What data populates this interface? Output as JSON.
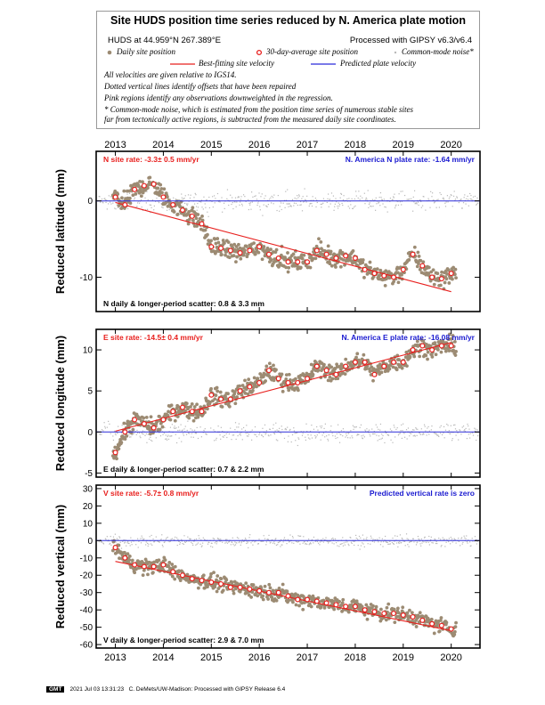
{
  "header": {
    "title": "Site HUDS position time series reduced by N. America plate motion",
    "site_location": "HUDS at 44.959°N 267.389°E",
    "processing": "Processed with GIPSY v6.3/v6.4",
    "legend": {
      "daily": "Daily site position",
      "avg": "30-day-average site position",
      "cmn": "Common-mode noise*",
      "fit": "Best-fitting site velocity",
      "plate": "Predicted plate velocity"
    },
    "notes": [
      "All velocities are given relative to IGS14.",
      "Dotted vertical lines identify offsets that have been repaired",
      "Pink regions identify any observations downweighted in the regression.",
      "* Common-mode noise, which is estimated from the position time series of numerous stable sites",
      "far from tectonically active regions, is subtracted from the measured daily site coordinates."
    ]
  },
  "colors": {
    "daily": "#9c8b73",
    "avg_ring": "#e8201e",
    "fit": "#e8201e",
    "plate": "#2b2bd9",
    "cmn": "#b8b8b8",
    "site_label": "#e8201e",
    "plate_label": "#1a1ad0"
  },
  "footer": {
    "logo": "GMT",
    "timestamp": "2021 Jul 03 13:31:23",
    "credit": "C. DeMets/UW-Madison: Processed with GIPSY Release 6.4"
  },
  "chart_data": [
    {
      "type": "scatter",
      "ylabel": "Reduced latitude (mm)",
      "xlim": [
        2012.6,
        2020.6
      ],
      "ylim": [
        -14.5,
        6.5
      ],
      "yticks": [
        -10,
        0
      ],
      "xticks": [
        2013,
        2014,
        2015,
        2016,
        2017,
        2018,
        2019,
        2020
      ],
      "site_rate_label": "N site rate:  -3.3± 0.5 mm/yr",
      "plate_rate_label": "N. America N plate rate:  -1.64 mm/yr",
      "scatter_label": "N daily & longer-period scatter:   0.8 &   3.3 mm",
      "fit_line": {
        "x": [
          2013.0,
          2020.0
        ],
        "y": [
          -0.2,
          -11.9
        ]
      },
      "plate_line": 0,
      "cmn_spread": 1.2,
      "daily_spread": 0.8,
      "avg_x": [
        2013.0,
        2013.2,
        2013.4,
        2013.6,
        2013.8,
        2014.0,
        2014.2,
        2014.4,
        2014.6,
        2014.8,
        2015.0,
        2015.2,
        2015.4,
        2015.6,
        2015.8,
        2016.0,
        2016.2,
        2016.4,
        2016.6,
        2016.8,
        2017.0,
        2017.2,
        2017.4,
        2017.6,
        2017.8,
        2018.0,
        2018.2,
        2018.4,
        2018.6,
        2018.8,
        2019.0,
        2019.2,
        2019.4,
        2019.6,
        2019.8,
        2020.0
      ],
      "avg_y": [
        0.5,
        -0.5,
        1.5,
        2.0,
        2.2,
        0.5,
        -0.5,
        -1.2,
        -2.0,
        -3.0,
        -6.0,
        -6.2,
        -6.5,
        -6.8,
        -6.5,
        -6.0,
        -7.0,
        -7.5,
        -8.0,
        -8.0,
        -8.0,
        -6.5,
        -7.0,
        -7.5,
        -7.2,
        -7.5,
        -9.0,
        -9.5,
        -9.8,
        -10.0,
        -9.0,
        -7.0,
        -8.5,
        -10.0,
        -10.2,
        -9.5
      ]
    },
    {
      "type": "scatter",
      "ylabel": "Reduced longitude (mm)",
      "xlim": [
        2012.6,
        2020.6
      ],
      "ylim": [
        -5.5,
        12.5
      ],
      "yticks": [
        -5,
        0,
        5,
        10
      ],
      "xticks": [
        2013,
        2014,
        2015,
        2016,
        2017,
        2018,
        2019,
        2020
      ],
      "site_rate_label": "E site rate:  -14.5± 0.4 mm/yr",
      "plate_rate_label": "N. America E plate rate:  -16.08 mm/yr",
      "scatter_label": "E daily & longer-period scatter:   0.7 &   2.2 mm",
      "fit_line": {
        "x": [
          2013.0,
          2020.0
        ],
        "y": [
          0.1,
          10.9
        ]
      },
      "plate_line": 0,
      "cmn_spread": 1.0,
      "daily_spread": 0.7,
      "avg_x": [
        2013.0,
        2013.2,
        2013.4,
        2013.6,
        2013.8,
        2014.0,
        2014.2,
        2014.4,
        2014.6,
        2014.8,
        2015.0,
        2015.2,
        2015.4,
        2015.6,
        2015.8,
        2016.0,
        2016.2,
        2016.4,
        2016.6,
        2016.8,
        2017.0,
        2017.2,
        2017.4,
        2017.6,
        2017.8,
        2018.0,
        2018.2,
        2018.4,
        2018.6,
        2018.8,
        2019.0,
        2019.2,
        2019.4,
        2019.6,
        2019.8,
        2020.0
      ],
      "avg_y": [
        -2.5,
        0.0,
        1.5,
        1.0,
        0.5,
        1.5,
        2.5,
        3.0,
        2.5,
        2.5,
        4.5,
        4.0,
        4.0,
        5.0,
        5.5,
        6.0,
        7.5,
        6.5,
        6.0,
        6.0,
        6.5,
        8.0,
        7.5,
        7.0,
        8.0,
        8.5,
        8.5,
        7.0,
        8.0,
        8.5,
        8.5,
        10.0,
        10.5,
        10.0,
        10.5,
        10.5
      ]
    },
    {
      "type": "scatter",
      "ylabel": "Reduced vertical (mm)",
      "xlim": [
        2012.6,
        2020.6
      ],
      "ylim": [
        -62,
        32
      ],
      "yticks": [
        -60,
        -50,
        -40,
        -30,
        -20,
        -10,
        0,
        10,
        20,
        30
      ],
      "xticks": [
        2013,
        2014,
        2015,
        2016,
        2017,
        2018,
        2019,
        2020
      ],
      "site_rate_label": "V site rate:  -5.7± 0.8 mm/yr",
      "plate_rate_label": "Predicted vertical rate is zero",
      "scatter_label": "V daily & longer-period scatter:   2.9 &   7.0 mm",
      "fit_line": {
        "x": [
          2013.0,
          2020.0
        ],
        "y": [
          -12.0,
          -52.0
        ]
      },
      "plate_line": 0,
      "cmn_spread": 3.0,
      "daily_spread": 2.9,
      "avg_x": [
        2013.0,
        2013.2,
        2013.4,
        2013.6,
        2013.8,
        2014.0,
        2014.2,
        2014.4,
        2014.6,
        2014.8,
        2015.0,
        2015.2,
        2015.4,
        2015.6,
        2015.8,
        2016.0,
        2016.2,
        2016.4,
        2016.6,
        2016.8,
        2017.0,
        2017.2,
        2017.4,
        2017.6,
        2017.8,
        2018.0,
        2018.2,
        2018.4,
        2018.6,
        2018.8,
        2019.0,
        2019.2,
        2019.4,
        2019.6,
        2019.8,
        2020.0
      ],
      "avg_y": [
        -4,
        -10,
        -14,
        -15,
        -15,
        -14,
        -18,
        -20,
        -22,
        -23,
        -24,
        -25,
        -27,
        -27,
        -28,
        -29,
        -30,
        -30,
        -32,
        -34,
        -34,
        -35,
        -36,
        -37,
        -38,
        -38,
        -40,
        -41,
        -42,
        -42,
        -43,
        -44,
        -46,
        -48,
        -49,
        -51
      ]
    }
  ]
}
